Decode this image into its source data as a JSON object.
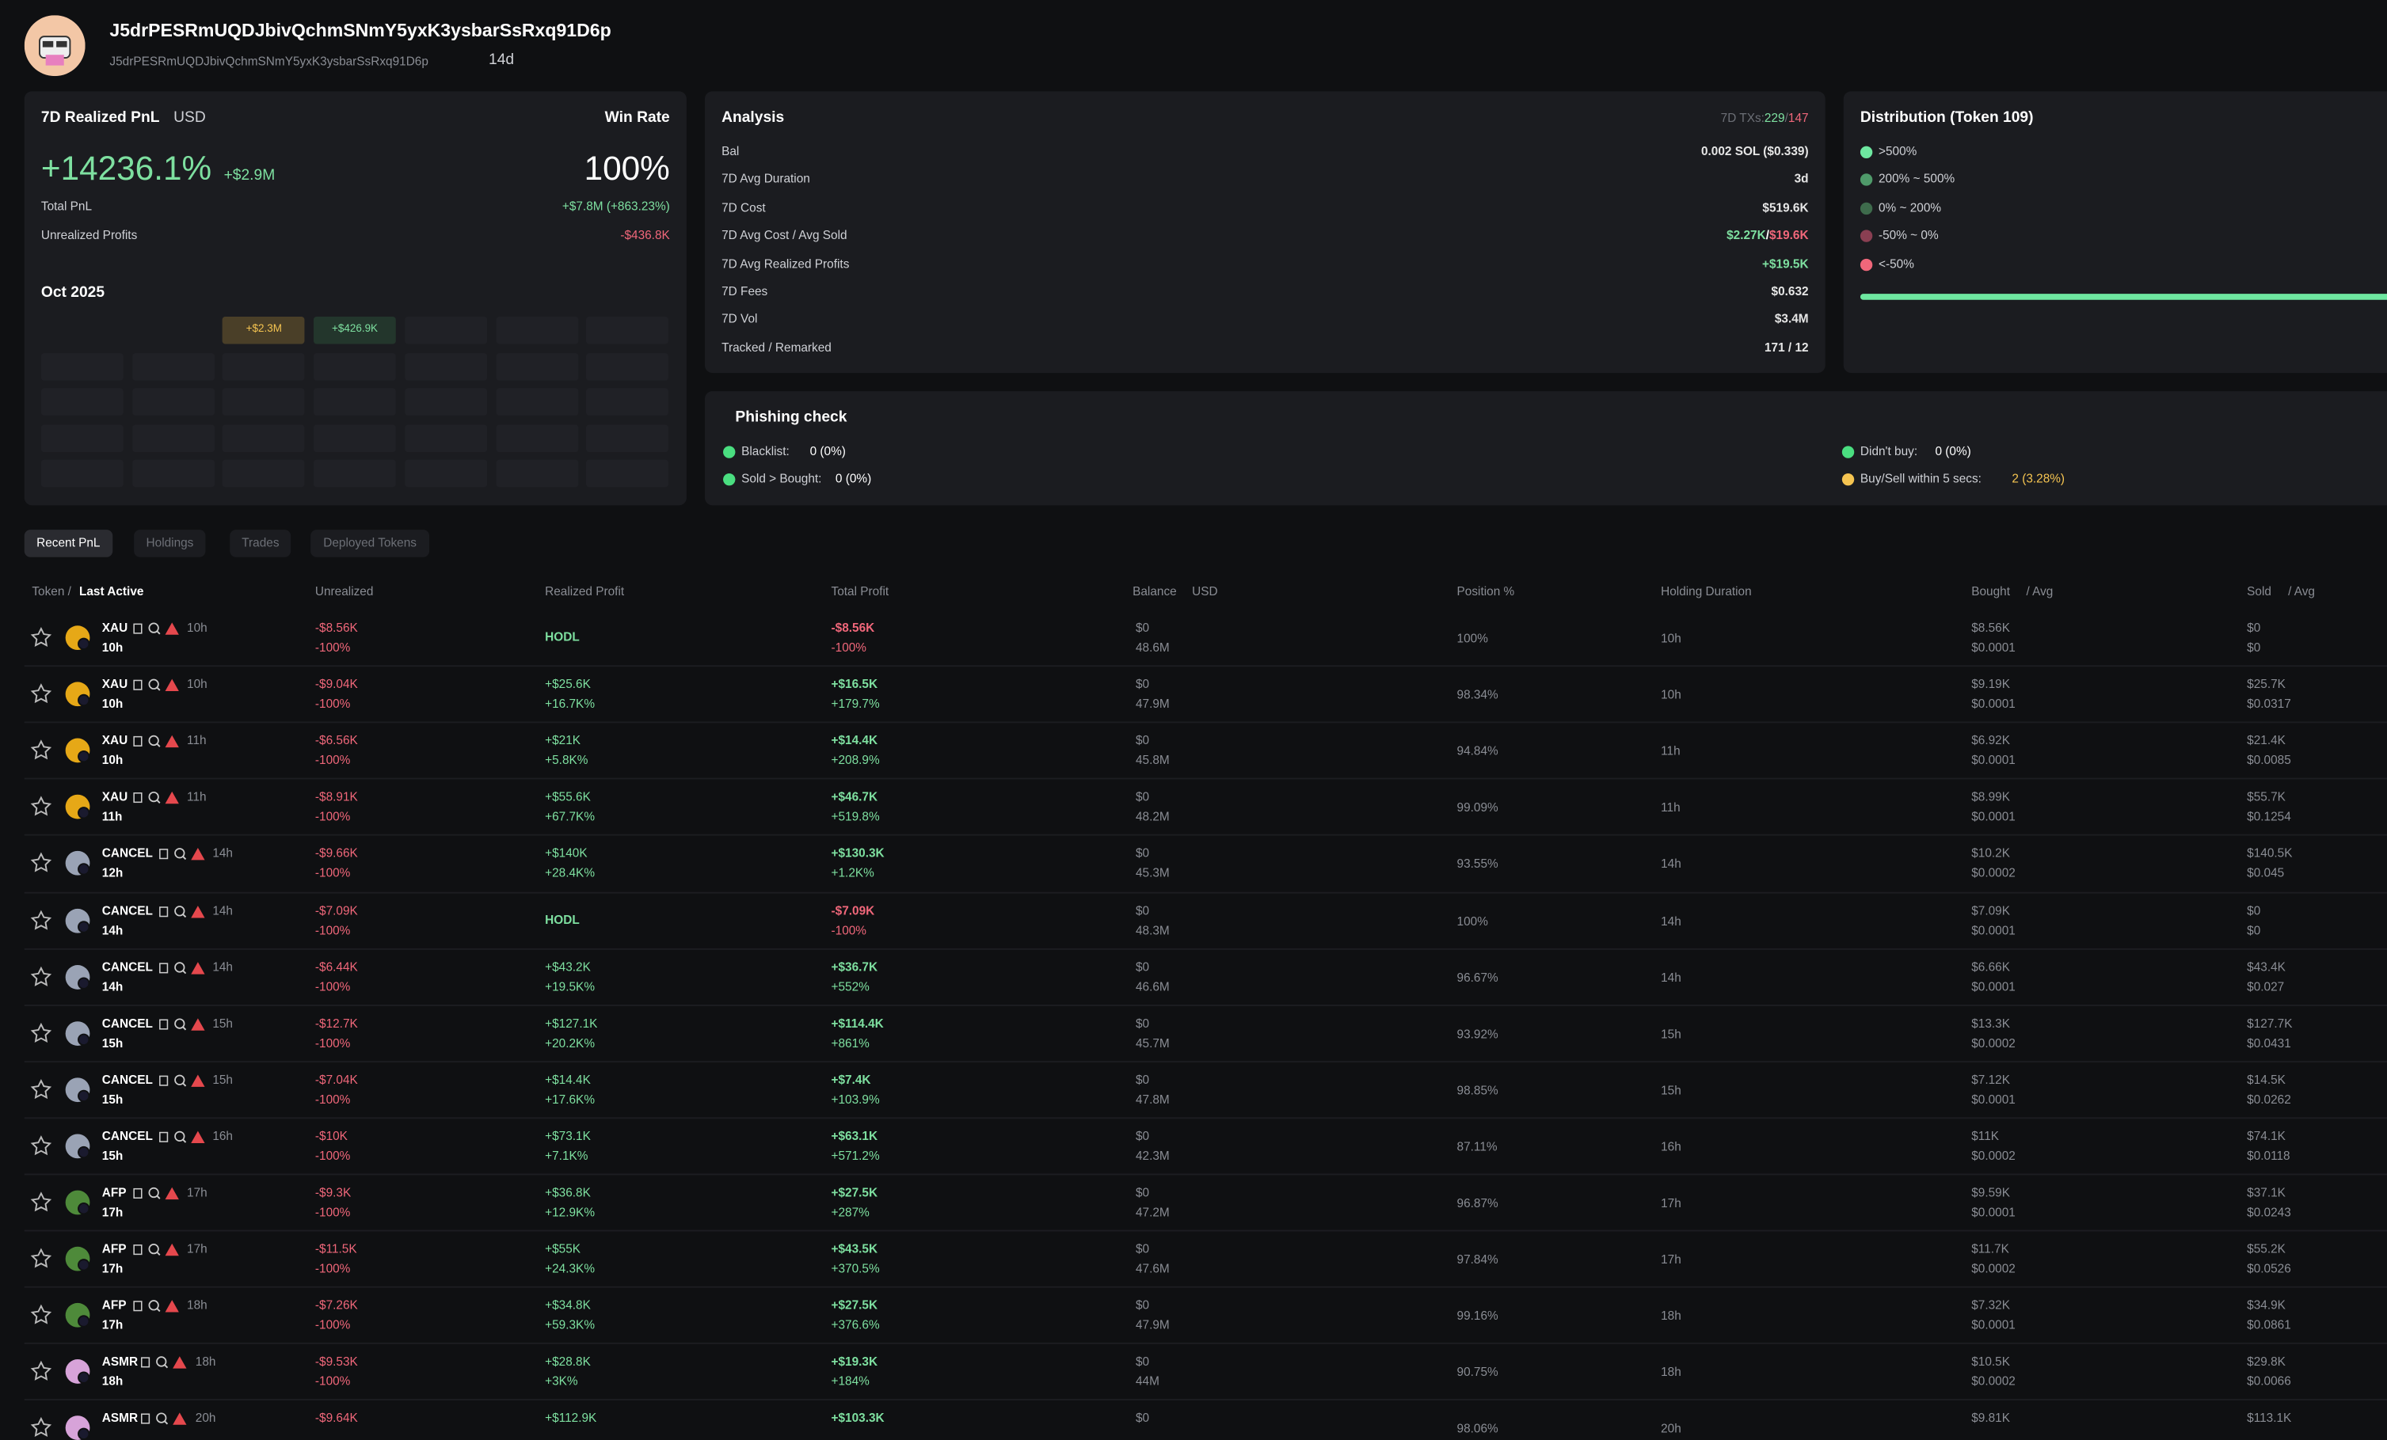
{
  "header": {
    "name": "J5drPESRmUQDJbivQchmSNmY5yxK3ysbarSsRxq91D6p",
    "address": "J5drPESRmUQDJbivQchmSNmY5yxK3ysbarSsRxq91D6p",
    "age": "14d"
  },
  "pnl": {
    "title": "7D Realized PnL",
    "currency": "USD",
    "win_rate_label": "Win Rate",
    "pct": "+14236.1%",
    "usd": "+$2.9M",
    "win_rate": "100%",
    "rows": [
      {
        "label": "Total PnL",
        "value": "+$7.8M (+863.23%)"
      },
      {
        "label": "Unrealized Profits",
        "value": "-$436.8K"
      }
    ],
    "month": "Oct 2025",
    "cells": [
      null,
      null,
      "+$2.3M",
      "+$426.9K",
      null,
      null,
      null
    ]
  },
  "analysis": {
    "title": "Analysis",
    "tx_label": "7D TXs:",
    "tx_buy": "229",
    "tx_sep": "/",
    "tx_sell": "147",
    "rows": [
      {
        "label": "Bal",
        "value": "0.002 SOL ($0.339)"
      },
      {
        "label": "7D Avg Duration",
        "value": "3d"
      },
      {
        "label": "7D Cost",
        "value": "$519.6K"
      },
      {
        "label": "7D Avg Cost / Avg Sold",
        "value": "$2.27K",
        "sep": "/",
        "value2": "$19.6K"
      },
      {
        "label": "7D Avg Realized Profits",
        "value": "+$19.5K"
      },
      {
        "label": "7D Fees",
        "value": "$0.632"
      },
      {
        "label": "7D Vol",
        "value": "$3.4M"
      },
      {
        "label": "Tracked / Remarked",
        "value": "171 / 12"
      }
    ]
  },
  "distribution": {
    "title": "Distribution (Token 109)",
    "items": [
      {
        "label": ">500%",
        "color": "#6ee7a0"
      },
      {
        "label": "200% ~ 500%",
        "color": "#4f9a6a"
      },
      {
        "label": "0% ~ 200%",
        "color": "#3e6b4c"
      },
      {
        "label": "-50% ~ 0%",
        "color": "#8a3f52"
      },
      {
        "label": "<-50%",
        "color": "#f0677a"
      }
    ]
  },
  "phishing": {
    "title": "Phishing check",
    "items": [
      {
        "label": "Blacklist:",
        "value": "0 (0%)",
        "color": "#4ade80"
      },
      {
        "label": "Sold > Bought:",
        "value": "0 (0%)",
        "color": "#4ade80"
      },
      {
        "label": "Didn't buy:",
        "value": "0 (0%)",
        "color": "#4ade80"
      },
      {
        "label": "Buy/Sell within 5 secs:",
        "value": "2 (3.28%)",
        "color": "#f5c451"
      }
    ]
  },
  "tabs": [
    "Recent PnL",
    "Holdings",
    "Trades",
    "Deployed Tokens"
  ],
  "table": {
    "headers": {
      "token": "Token /",
      "last_active": "Last Active",
      "unrealized": "Unrealized",
      "realized": "Realized Profit",
      "total": "Total Profit",
      "balance": "Balance",
      "usd": "USD",
      "position": "Position %",
      "duration": "Holding Duration",
      "bought": "Bought",
      "bought_avg": "/ Avg",
      "sold": "Sold",
      "sold_avg": "/ Avg"
    },
    "rows": [
      {
        "token": "XAU",
        "age": "10h",
        "last": "10h",
        "unreal": "-$8.56K",
        "unreal_pct": "-100%",
        "realized": "HODL",
        "total": "-$8.56K",
        "total_pct": "-100%",
        "balance": "$0",
        "amount": "48.6M",
        "position": "100%",
        "duration": "10h",
        "bought": "$8.56K",
        "bought_avg": "$0.0001",
        "sold": "$0",
        "sold_avg": "$0"
      },
      {
        "token": "XAU",
        "age": "10h",
        "last": "10h",
        "unreal": "-$9.04K",
        "unreal_pct": "-100%",
        "realized": "+$25.6K",
        "realized_pct": "+16.7K%",
        "total": "+$16.5K",
        "total_pct": "+179.7%",
        "balance": "$0",
        "amount": "47.9M",
        "position": "98.34%",
        "duration": "10h",
        "bought": "$9.19K",
        "bought_avg": "$0.0001",
        "sold": "$25.7K",
        "sold_avg": "$0.0317"
      },
      {
        "token": "XAU",
        "age": "11h",
        "last": "10h",
        "unreal": "-$6.56K",
        "unreal_pct": "-100%",
        "realized": "+$21K",
        "realized_pct": "+5.8K%",
        "total": "+$14.4K",
        "total_pct": "+208.9%",
        "balance": "$0",
        "amount": "45.8M",
        "position": "94.84%",
        "duration": "11h",
        "bought": "$6.92K",
        "bought_avg": "$0.0001",
        "sold": "$21.4K",
        "sold_avg": "$0.0085"
      },
      {
        "token": "XAU",
        "age": "11h",
        "last": "11h",
        "unreal": "-$8.91K",
        "unreal_pct": "-100%",
        "realized": "+$55.6K",
        "realized_pct": "+67.7K%",
        "total": "+$46.7K",
        "total_pct": "+519.8%",
        "balance": "$0",
        "amount": "48.2M",
        "position": "99.09%",
        "duration": "11h",
        "bought": "$8.99K",
        "bought_avg": "$0.0001",
        "sold": "$55.7K",
        "sold_avg": "$0.1254"
      },
      {
        "token": "CANCEL",
        "age": "14h",
        "last": "12h",
        "unreal": "-$9.66K",
        "unreal_pct": "-100%",
        "realized": "+$140K",
        "realized_pct": "+28.4K%",
        "total": "+$130.3K",
        "total_pct": "+1.2K%",
        "balance": "$0",
        "amount": "45.3M",
        "position": "93.55%",
        "duration": "14h",
        "bought": "$10.2K",
        "bought_avg": "$0.0002",
        "sold": "$140.5K",
        "sold_avg": "$0.045"
      },
      {
        "token": "CANCEL",
        "age": "14h",
        "last": "14h",
        "unreal": "-$7.09K",
        "unreal_pct": "-100%",
        "realized": "HODL",
        "total": "-$7.09K",
        "total_pct": "-100%",
        "balance": "$0",
        "amount": "48.3M",
        "position": "100%",
        "duration": "14h",
        "bought": "$7.09K",
        "bought_avg": "$0.0001",
        "sold": "$0",
        "sold_avg": "$0"
      },
      {
        "token": "CANCEL",
        "age": "14h",
        "last": "14h",
        "unreal": "-$6.44K",
        "unreal_pct": "-100%",
        "realized": "+$43.2K",
        "realized_pct": "+19.5K%",
        "total": "+$36.7K",
        "total_pct": "+552%",
        "balance": "$0",
        "amount": "46.6M",
        "position": "96.67%",
        "duration": "14h",
        "bought": "$6.66K",
        "bought_avg": "$0.0001",
        "sold": "$43.4K",
        "sold_avg": "$0.027"
      },
      {
        "token": "CANCEL",
        "age": "15h",
        "last": "15h",
        "unreal": "-$12.7K",
        "unreal_pct": "-100%",
        "realized": "+$127.1K",
        "realized_pct": "+20.2K%",
        "total": "+$114.4K",
        "total_pct": "+861%",
        "balance": "$0",
        "amount": "45.7M",
        "position": "93.92%",
        "duration": "15h",
        "bought": "$13.3K",
        "bought_avg": "$0.0002",
        "sold": "$127.7K",
        "sold_avg": "$0.0431"
      },
      {
        "token": "CANCEL",
        "age": "15h",
        "last": "15h",
        "unreal": "-$7.04K",
        "unreal_pct": "-100%",
        "realized": "+$14.4K",
        "realized_pct": "+17.6K%",
        "total": "+$7.4K",
        "total_pct": "+103.9%",
        "balance": "$0",
        "amount": "47.8M",
        "position": "98.85%",
        "duration": "15h",
        "bought": "$7.12K",
        "bought_avg": "$0.0001",
        "sold": "$14.5K",
        "sold_avg": "$0.0262"
      },
      {
        "token": "CANCEL",
        "age": "16h",
        "last": "15h",
        "unreal": "-$10K",
        "unreal_pct": "-100%",
        "realized": "+$73.1K",
        "realized_pct": "+7.1K%",
        "total": "+$63.1K",
        "total_pct": "+571.2%",
        "balance": "$0",
        "amount": "42.3M",
        "position": "87.11%",
        "duration": "16h",
        "bought": "$11K",
        "bought_avg": "$0.0002",
        "sold": "$74.1K",
        "sold_avg": "$0.0118"
      },
      {
        "token": "AFP",
        "age": "17h",
        "last": "17h",
        "unreal": "-$9.3K",
        "unreal_pct": "-100%",
        "realized": "+$36.8K",
        "realized_pct": "+12.9K%",
        "total": "+$27.5K",
        "total_pct": "+287%",
        "balance": "$0",
        "amount": "47.2M",
        "position": "96.87%",
        "duration": "17h",
        "bought": "$9.59K",
        "bought_avg": "$0.0001",
        "sold": "$37.1K",
        "sold_avg": "$0.0243"
      },
      {
        "token": "AFP",
        "age": "17h",
        "last": "17h",
        "unreal": "-$11.5K",
        "unreal_pct": "-100%",
        "realized": "+$55K",
        "realized_pct": "+24.3K%",
        "total": "+$43.5K",
        "total_pct": "+370.5%",
        "balance": "$0",
        "amount": "47.6M",
        "position": "97.84%",
        "duration": "17h",
        "bought": "$11.7K",
        "bought_avg": "$0.0002",
        "sold": "$55.2K",
        "sold_avg": "$0.0526"
      },
      {
        "token": "AFP",
        "age": "18h",
        "last": "17h",
        "unreal": "-$7.26K",
        "unreal_pct": "-100%",
        "realized": "+$34.8K",
        "realized_pct": "+59.3K%",
        "total": "+$27.5K",
        "total_pct": "+376.6%",
        "balance": "$0",
        "amount": "47.9M",
        "position": "99.16%",
        "duration": "18h",
        "bought": "$7.32K",
        "bought_avg": "$0.0001",
        "sold": "$34.9K",
        "sold_avg": "$0.0861"
      },
      {
        "token": "ASMR",
        "age": "18h",
        "last": "18h",
        "unreal": "-$9.53K",
        "unreal_pct": "-100%",
        "realized": "+$28.8K",
        "realized_pct": "+3K%",
        "total": "+$19.3K",
        "total_pct": "+184%",
        "balance": "$0",
        "amount": "44M",
        "position": "90.75%",
        "duration": "18h",
        "bought": "$10.5K",
        "bought_avg": "$0.0002",
        "sold": "$29.8K",
        "sold_avg": "$0.0066"
      },
      {
        "token": "ASMR",
        "age": "20h",
        "unreal": "-$9.64K",
        "realized": "+$112.9K",
        "total": "+$103.3K",
        "balance": "$0",
        "position": "98.06%",
        "duration": "20h",
        "bought": "$9.81K",
        "sold": "$113.1K"
      }
    ]
  }
}
